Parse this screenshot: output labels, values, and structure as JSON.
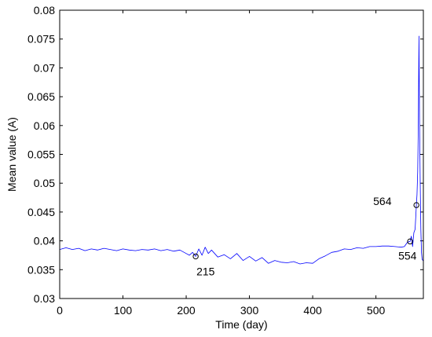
{
  "chart_data": {
    "type": "line",
    "title": "",
    "xlabel": "Time (day)",
    "ylabel": "Mean value (A)",
    "xlim": [
      0,
      575
    ],
    "ylim": [
      0.03,
      0.08
    ],
    "x_ticks": [
      0,
      100,
      200,
      300,
      400,
      500
    ],
    "x_tick_labels": [
      "0",
      "100",
      "200",
      "300",
      "400",
      "500"
    ],
    "y_ticks": [
      0.03,
      0.035,
      0.04,
      0.045,
      0.05,
      0.055,
      0.06,
      0.065,
      0.07,
      0.075,
      0.08
    ],
    "y_tick_labels": [
      "0.03",
      "0.035",
      "0.04",
      "0.045",
      "0.05",
      "0.055",
      "0.06",
      "0.065",
      "0.07",
      "0.075",
      "0.08"
    ],
    "grid": false,
    "line_color": "#0000ff",
    "series": [
      {
        "x": [
          0,
          10,
          20,
          30,
          40,
          50,
          60,
          70,
          80,
          90,
          100,
          110,
          120,
          130,
          140,
          150,
          160,
          170,
          180,
          190,
          200,
          205,
          210,
          215,
          220,
          225,
          230,
          235,
          240,
          250,
          260,
          270,
          280,
          290,
          300,
          310,
          320,
          330,
          340,
          350,
          360,
          370,
          380,
          390,
          400,
          410,
          420,
          430,
          440,
          450,
          460,
          470,
          480,
          490,
          500,
          510,
          520,
          530,
          540,
          545,
          550,
          554,
          556,
          558,
          560,
          562,
          564,
          565,
          566,
          567,
          568,
          569,
          570,
          571,
          572,
          573,
          575
        ],
        "y": [
          0.0385,
          0.0388,
          0.0385,
          0.0387,
          0.0383,
          0.0386,
          0.0384,
          0.0387,
          0.0385,
          0.0383,
          0.0386,
          0.0384,
          0.0383,
          0.0385,
          0.0384,
          0.0386,
          0.0383,
          0.0385,
          0.0382,
          0.0384,
          0.0378,
          0.0375,
          0.038,
          0.0373,
          0.0386,
          0.0375,
          0.0389,
          0.0378,
          0.0384,
          0.0372,
          0.0376,
          0.0369,
          0.0378,
          0.0366,
          0.0373,
          0.0365,
          0.0371,
          0.0361,
          0.0366,
          0.0363,
          0.0362,
          0.0364,
          0.036,
          0.0362,
          0.0361,
          0.0369,
          0.0374,
          0.038,
          0.0382,
          0.0386,
          0.0385,
          0.0388,
          0.0387,
          0.039,
          0.039,
          0.0391,
          0.0391,
          0.039,
          0.0389,
          0.039,
          0.0398,
          0.0399,
          0.0408,
          0.039,
          0.0414,
          0.042,
          0.0462,
          0.048,
          0.052,
          0.06,
          0.0755,
          0.06,
          0.05,
          0.042,
          0.038,
          0.0368,
          0.0365
        ]
      }
    ],
    "markers": [
      {
        "x": 215,
        "y": 0.0373,
        "label": "215"
      },
      {
        "x": 554,
        "y": 0.0399,
        "label": "554"
      },
      {
        "x": 564,
        "y": 0.0462,
        "label": "564"
      }
    ]
  }
}
